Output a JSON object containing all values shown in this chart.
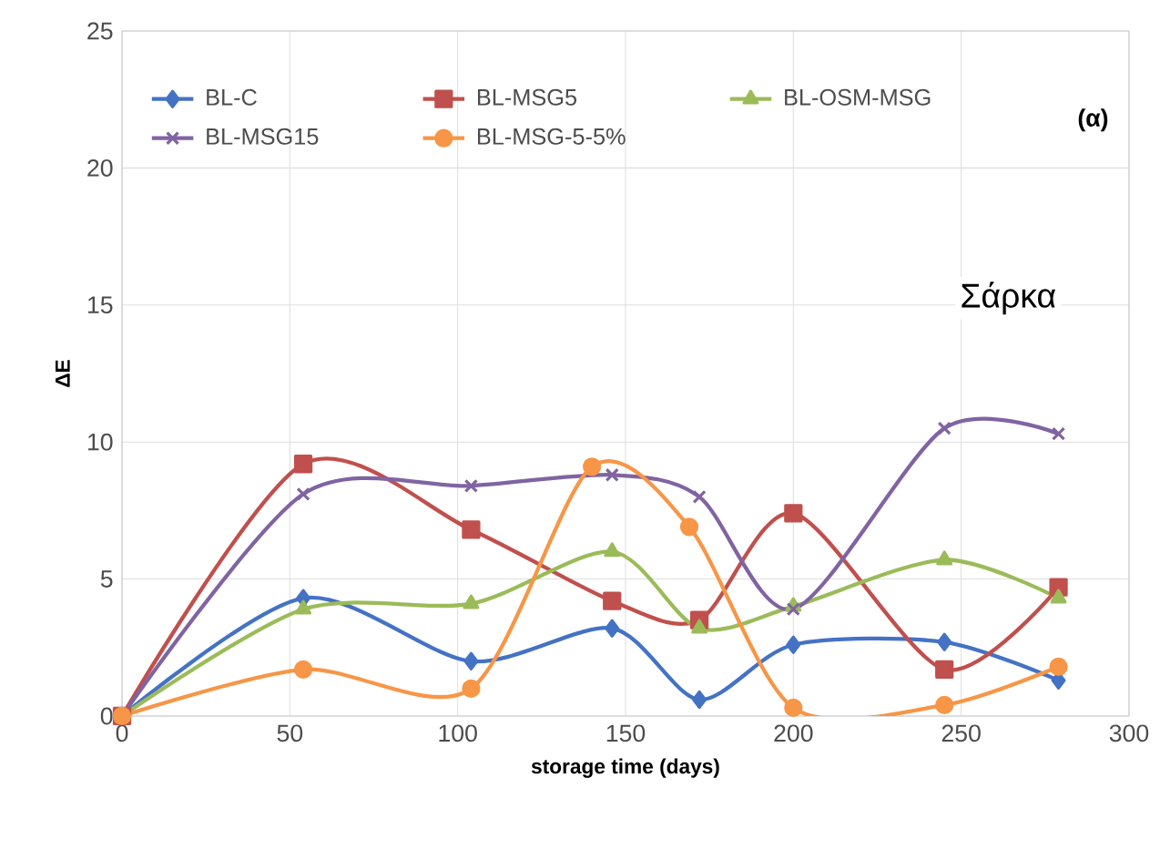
{
  "chart_data": {
    "type": "line",
    "xlabel": "storage time (days)",
    "ylabel": "ΔE",
    "xlim": [
      0,
      300
    ],
    "ylim": [
      0,
      25
    ],
    "xticks": [
      0,
      50,
      100,
      150,
      200,
      250,
      300
    ],
    "yticks": [
      0,
      5,
      10,
      15,
      20,
      25
    ],
    "grid": true,
    "legend": "top",
    "line_style": "solid",
    "annotations": [
      "(α)",
      "Σάρκα"
    ],
    "series": [
      {
        "name": "BL-C",
        "color": "#4472c4",
        "marker": "diamond",
        "x": [
          0,
          54,
          104,
          146,
          172,
          200,
          245,
          279
        ],
        "values": [
          0,
          4.3,
          2.0,
          3.2,
          0.6,
          2.6,
          2.7,
          1.3
        ]
      },
      {
        "name": "BL-MSG5",
        "color": "#c0504d",
        "marker": "square",
        "x": [
          0,
          54,
          104,
          146,
          172,
          200,
          245,
          279
        ],
        "values": [
          0,
          9.2,
          6.8,
          4.2,
          3.5,
          7.4,
          1.7,
          4.7
        ]
      },
      {
        "name": "BL-OSM-MSG",
        "color": "#9bbb59",
        "marker": "triangle",
        "x": [
          0,
          54,
          104,
          146,
          172,
          200,
          245,
          279
        ],
        "values": [
          0,
          3.9,
          4.1,
          6.0,
          3.2,
          4.0,
          5.7,
          4.3
        ]
      },
      {
        "name": "BL-MSG15",
        "color": "#8064a2",
        "marker": "cross",
        "x": [
          0,
          54,
          104,
          146,
          172,
          200,
          245,
          279
        ],
        "values": [
          0,
          8.1,
          8.4,
          8.8,
          8.0,
          3.9,
          10.5,
          10.3
        ]
      },
      {
        "name": "BL-MSG-5-5%",
        "color": "#f79646",
        "marker": "circle",
        "x": [
          0,
          54,
          104,
          140,
          169,
          200,
          245,
          279
        ],
        "values": [
          0,
          1.7,
          1.0,
          9.1,
          6.9,
          0.3,
          0.4,
          1.8
        ]
      }
    ]
  }
}
